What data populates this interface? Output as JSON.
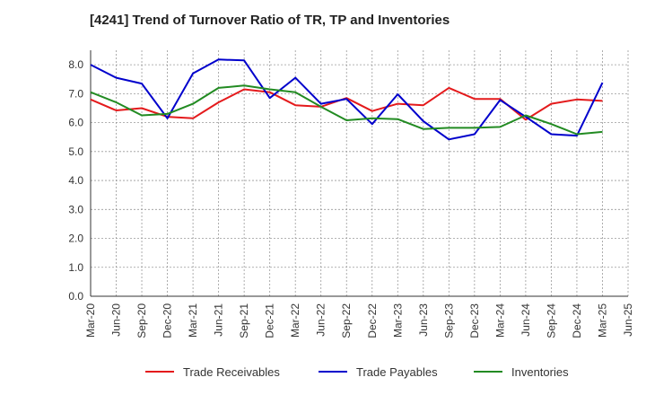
{
  "chart_data": {
    "type": "line",
    "title": "[4241]  Trend of Turnover Ratio of TR, TP and Inventories",
    "xlabel": "",
    "ylabel": "",
    "ylim": [
      0,
      8.5
    ],
    "yticks": [
      "0.0",
      "1.0",
      "2.0",
      "3.0",
      "4.0",
      "5.0",
      "6.0",
      "7.0",
      "8.0"
    ],
    "ytick_values": [
      0,
      1,
      2,
      3,
      4,
      5,
      6,
      7,
      8
    ],
    "x": [
      "Mar-20",
      "Jun-20",
      "Sep-20",
      "Dec-20",
      "Mar-21",
      "Jun-21",
      "Sep-21",
      "Dec-21",
      "Mar-22",
      "Jun-22",
      "Sep-22",
      "Dec-22",
      "Mar-23",
      "Jun-23",
      "Sep-23",
      "Dec-23",
      "Mar-24",
      "Jun-24",
      "Sep-24",
      "Dec-24",
      "Mar-25",
      "Jun-25"
    ],
    "grid": true,
    "legend_position": "bottom",
    "series": [
      {
        "name": "Trade Receivables",
        "color": "#e41a1c",
        "values": [
          6.8,
          6.42,
          6.5,
          6.2,
          6.15,
          6.7,
          7.15,
          7.05,
          6.6,
          6.55,
          6.85,
          6.4,
          6.65,
          6.6,
          7.2,
          6.82,
          6.82,
          6.1,
          6.65,
          6.8,
          6.75,
          null
        ]
      },
      {
        "name": "Trade Payables",
        "color": "#0000cc",
        "values": [
          8.0,
          7.55,
          7.35,
          6.15,
          7.7,
          8.18,
          8.15,
          6.85,
          7.55,
          6.65,
          6.82,
          5.95,
          6.98,
          6.05,
          5.42,
          5.6,
          6.78,
          6.2,
          5.6,
          5.55,
          7.38,
          null
        ]
      },
      {
        "name": "Inventories",
        "color": "#228b22",
        "values": [
          7.05,
          6.7,
          6.25,
          6.3,
          6.65,
          7.2,
          7.28,
          7.15,
          7.05,
          6.55,
          6.08,
          6.15,
          6.12,
          5.78,
          5.82,
          5.82,
          5.85,
          6.25,
          5.95,
          5.6,
          5.68,
          null
        ]
      }
    ]
  }
}
